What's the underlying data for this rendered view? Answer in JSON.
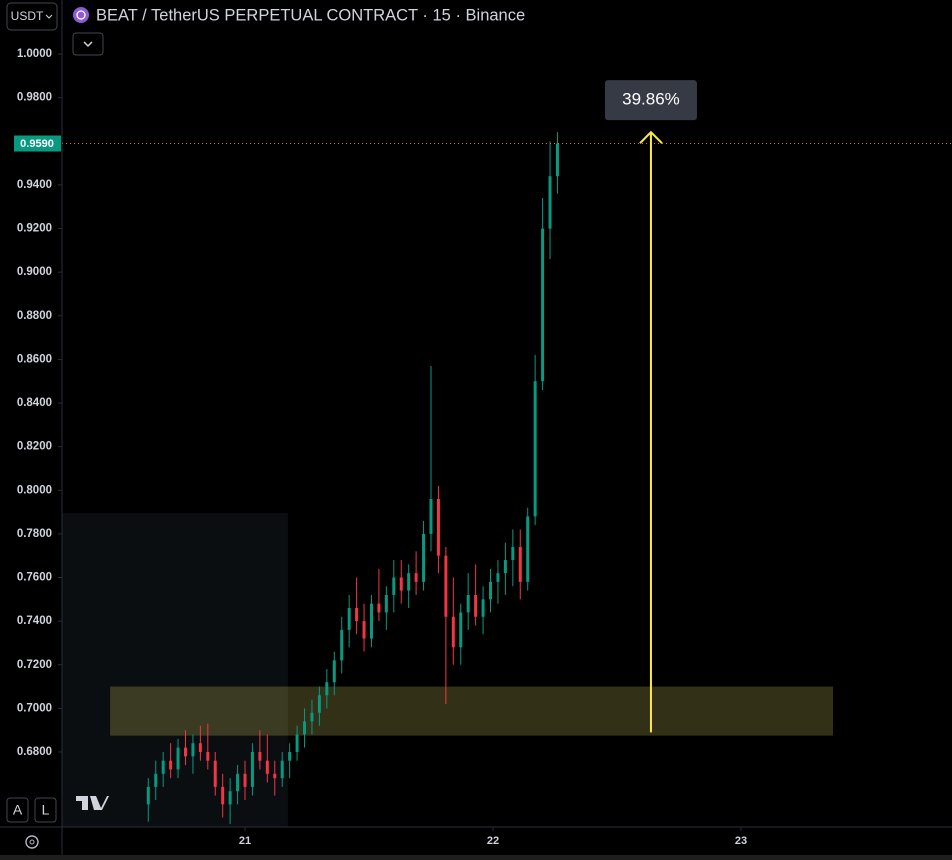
{
  "toolbar": {
    "currency": "USDT",
    "buttons": [
      "A",
      "L"
    ]
  },
  "chart_data": {
    "type": "candlestick",
    "title": "BEAT / TetherUS PERPETUAL CONTRACT · 15 · Binance",
    "up_color": "#089981",
    "down_color": "#f23645",
    "x": [
      20.61,
      20.64,
      20.67,
      20.7,
      20.73,
      20.76,
      20.79,
      20.82,
      20.85,
      20.88,
      20.91,
      20.94,
      20.97,
      21.0,
      21.03,
      21.06,
      21.09,
      21.12,
      21.15,
      21.18,
      21.21,
      21.24,
      21.27,
      21.3,
      21.33,
      21.36,
      21.39,
      21.42,
      21.45,
      21.48,
      21.51,
      21.54,
      21.57,
      21.6,
      21.63,
      21.66,
      21.69,
      21.72,
      21.75,
      21.78,
      21.81,
      21.84,
      21.87,
      21.9,
      21.93,
      21.96,
      21.99,
      22.02,
      22.05,
      22.08,
      22.11,
      22.14,
      22.17,
      22.2,
      22.23,
      22.26
    ],
    "open": [
      0.656,
      0.664,
      0.67,
      0.676,
      0.672,
      0.682,
      0.678,
      0.684,
      0.68,
      0.676,
      0.664,
      0.656,
      0.662,
      0.67,
      0.664,
      0.68,
      0.676,
      0.67,
      0.668,
      0.676,
      0.68,
      0.688,
      0.694,
      0.698,
      0.706,
      0.712,
      0.722,
      0.736,
      0.746,
      0.74,
      0.732,
      0.748,
      0.744,
      0.752,
      0.76,
      0.754,
      0.762,
      0.758,
      0.78,
      0.796,
      0.77,
      0.742,
      0.728,
      0.744,
      0.752,
      0.742,
      0.75,
      0.758,
      0.762,
      0.768,
      0.774,
      0.758,
      0.788,
      0.85,
      0.92,
      0.944
    ],
    "high": [
      0.668,
      0.676,
      0.68,
      0.684,
      0.686,
      0.69,
      0.688,
      0.692,
      0.693,
      0.68,
      0.67,
      0.668,
      0.674,
      0.676,
      0.684,
      0.69,
      0.688,
      0.676,
      0.68,
      0.684,
      0.692,
      0.7,
      0.704,
      0.71,
      0.718,
      0.726,
      0.742,
      0.752,
      0.76,
      0.748,
      0.752,
      0.764,
      0.756,
      0.768,
      0.768,
      0.766,
      0.772,
      0.786,
      0.857,
      0.802,
      0.774,
      0.76,
      0.748,
      0.762,
      0.766,
      0.756,
      0.764,
      0.768,
      0.776,
      0.782,
      0.782,
      0.792,
      0.862,
      0.934,
      0.96,
      0.9642
    ],
    "low": [
      0.648,
      0.658,
      0.664,
      0.668,
      0.668,
      0.674,
      0.67,
      0.676,
      0.672,
      0.66,
      0.65,
      0.647,
      0.656,
      0.658,
      0.66,
      0.672,
      0.666,
      0.66,
      0.664,
      0.668,
      0.676,
      0.682,
      0.688,
      0.692,
      0.7,
      0.706,
      0.716,
      0.728,
      0.734,
      0.726,
      0.728,
      0.74,
      0.736,
      0.744,
      0.748,
      0.746,
      0.752,
      0.754,
      0.772,
      0.762,
      0.702,
      0.72,
      0.72,
      0.736,
      0.738,
      0.734,
      0.744,
      0.748,
      0.752,
      0.756,
      0.75,
      0.754,
      0.784,
      0.846,
      0.906,
      0.936
    ],
    "close": [
      0.664,
      0.67,
      0.676,
      0.672,
      0.682,
      0.678,
      0.684,
      0.68,
      0.676,
      0.664,
      0.656,
      0.662,
      0.67,
      0.664,
      0.68,
      0.676,
      0.67,
      0.668,
      0.676,
      0.68,
      0.688,
      0.694,
      0.698,
      0.706,
      0.712,
      0.722,
      0.736,
      0.746,
      0.74,
      0.732,
      0.748,
      0.744,
      0.752,
      0.76,
      0.754,
      0.762,
      0.758,
      0.78,
      0.796,
      0.77,
      0.742,
      0.728,
      0.744,
      0.752,
      0.742,
      0.75,
      0.758,
      0.762,
      0.768,
      0.774,
      0.758,
      0.788,
      0.85,
      0.92,
      0.944,
      0.959
    ],
    "xlim": [
      20.262,
      23.851
    ],
    "ylim": [
      0.6456,
      1.0248
    ],
    "xticks": [
      21,
      22,
      23
    ],
    "yticks": [
      {
        "value": 1.0,
        "label": "1.0000"
      },
      {
        "value": 0.98,
        "label": "0.9800"
      },
      {
        "value": 0.94,
        "label": "0.9400"
      },
      {
        "value": 0.92,
        "label": "0.9200"
      },
      {
        "value": 0.9,
        "label": "0.9000"
      },
      {
        "value": 0.88,
        "label": "0.8800"
      },
      {
        "value": 0.86,
        "label": "0.8600"
      },
      {
        "value": 0.84,
        "label": "0.8400"
      },
      {
        "value": 0.82,
        "label": "0.8200"
      },
      {
        "value": 0.8,
        "label": "0.8000"
      },
      {
        "value": 0.78,
        "label": "0.7800"
      },
      {
        "value": 0.76,
        "label": "0.7600"
      },
      {
        "value": 0.74,
        "label": "0.7400"
      },
      {
        "value": 0.72,
        "label": "0.7200"
      },
      {
        "value": 0.7,
        "label": "0.7000"
      },
      {
        "value": 0.68,
        "label": "0.6800"
      }
    ],
    "last_price": {
      "value": 0.959,
      "value_label": "0.9590",
      "color": "#089981"
    },
    "box": {
      "x": [
        20.262,
        21.173
      ],
      "y": [
        0.6456,
        0.7896
      ]
    },
    "zone": {
      "x": [
        20.456,
        23.371
      ],
      "y": [
        0.6875,
        0.71
      ],
      "color": "#fff176"
    },
    "measure": {
      "x": 22.637,
      "from": 0.689,
      "to": 0.9642,
      "label": "39.86%",
      "color": "#ffeb3b"
    }
  }
}
